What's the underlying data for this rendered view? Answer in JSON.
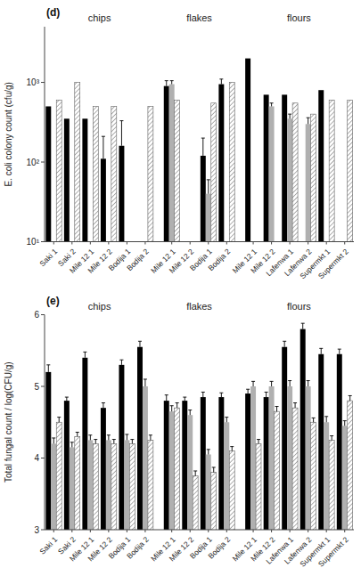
{
  "chart_data": [
    {
      "type": "bar",
      "title": "(d)",
      "ylabel": "E. coli colony count (cfu/g)",
      "log": "y",
      "categories": [
        "Saki 1",
        "Saki 2",
        "Mile 12 1",
        "Mile 12 2",
        "Bodija 1",
        "Bodija 2",
        null,
        "Mile 12 1",
        "Mile 12 2",
        "Bodija 1",
        "Bodija 2",
        null,
        "Mile 12 1",
        "Mile 12 2",
        "Lafenwa 1",
        "Lafenwa 2",
        "Supermkt 1",
        "Supermkt 2"
      ],
      "series": [
        {
          "color": "#000000",
          "values": [
            500,
            350,
            350,
            110,
            160,
            null,
            null,
            900,
            null,
            120,
            950,
            null,
            2000,
            700,
            700,
            null,
            800,
            null
          ],
          "errors": [
            null,
            null,
            null,
            100,
            170,
            null,
            null,
            150,
            null,
            80,
            150,
            null,
            null,
            null,
            null,
            null,
            null,
            null
          ]
        },
        {
          "color": "#b0b0b0",
          "values": [
            null,
            null,
            null,
            null,
            null,
            null,
            null,
            950,
            null,
            40,
            null,
            null,
            null,
            500,
            350,
            300,
            null,
            null
          ],
          "errors": [
            null,
            null,
            null,
            null,
            null,
            null,
            null,
            100,
            null,
            20,
            null,
            null,
            null,
            50,
            50,
            60,
            null,
            null
          ]
        },
        {
          "color": "#606060",
          "marker": "hatch",
          "values": [
            600,
            1000,
            500,
            500,
            null,
            500,
            null,
            600,
            null,
            550,
            1000,
            null,
            null,
            null,
            550,
            400,
            600,
            600
          ]
        }
      ],
      "annotations": [
        "chips",
        "flakes",
        "flours"
      ],
      "ylim": [
        10,
        5000
      ],
      "yticks": [
        {
          "value": 10,
          "label": "10¹"
        },
        {
          "value": 100,
          "label": "10²"
        },
        {
          "value": 1000,
          "label": "10³"
        }
      ]
    },
    {
      "type": "bar",
      "title": "(e)",
      "ylabel": "Total fungal count / log(CFU/g)",
      "categories": [
        "Saki 1",
        "Saki 2",
        "Mile 12 1",
        "Mile 12 2",
        "Bodija 1",
        "Bodija 2",
        null,
        "Mile 12 1",
        "Mile 12 2",
        "Bodija 1",
        "Bodija 2",
        null,
        "Mile 12 1",
        "Mile 12 2",
        "Lafenwa 1",
        "Lafenwa 2",
        "Supermkt 1",
        "Supermkt 2"
      ],
      "series": [
        {
          "color": "#000000",
          "values": [
            5.2,
            4.8,
            5.4,
            4.7,
            5.3,
            5.55,
            null,
            4.8,
            4.8,
            4.85,
            4.85,
            null,
            4.9,
            4.85,
            5.55,
            5.8,
            5.45,
            5.45
          ],
          "errors": [
            0.1,
            0.05,
            0.08,
            0.07,
            0.07,
            0.08,
            null,
            0.08,
            0.05,
            0.07,
            0.06,
            null,
            0.06,
            0.07,
            0.08,
            0.08,
            0.08,
            0.07
          ]
        },
        {
          "color": "#b0b0b0",
          "values": [
            4.2,
            4.15,
            4.25,
            4.25,
            4.25,
            5.0,
            null,
            4.65,
            4.6,
            4.05,
            4.5,
            null,
            5.0,
            5.0,
            5.0,
            5.0,
            4.5,
            4.45
          ],
          "errors": [
            0.08,
            0.07,
            0.07,
            0.07,
            0.08,
            0.1,
            null,
            0.08,
            0.07,
            0.07,
            0.07,
            null,
            0.07,
            0.07,
            0.08,
            0.08,
            0.08,
            0.07
          ]
        },
        {
          "color": "#606060",
          "marker": "hatch",
          "values": [
            4.5,
            4.3,
            4.2,
            4.2,
            4.2,
            4.25,
            null,
            4.7,
            3.75,
            3.8,
            4.1,
            null,
            4.2,
            4.65,
            4.7,
            4.5,
            4.25,
            4.8
          ],
          "errors": [
            0.07,
            0.06,
            0.06,
            0.06,
            0.06,
            0.07,
            null,
            0.07,
            0.07,
            0.07,
            0.06,
            null,
            0.06,
            0.07,
            0.07,
            0.06,
            0.06,
            0.07
          ]
        }
      ],
      "annotations": [
        "chips",
        "flakes",
        "flours"
      ],
      "ylim": [
        3,
        6
      ],
      "yticks": [
        3,
        4,
        5,
        6
      ]
    }
  ]
}
